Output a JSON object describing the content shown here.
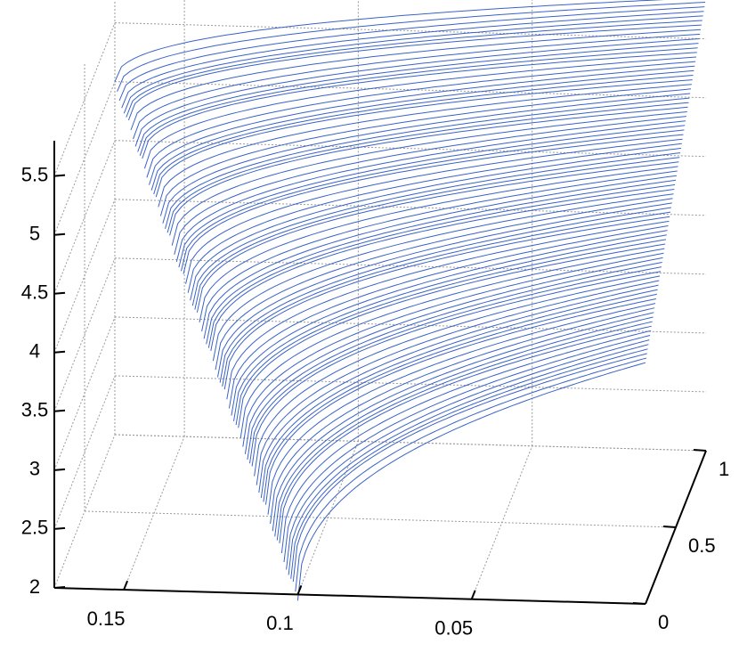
{
  "chart_data": {
    "type": "surface",
    "title": "",
    "xlabel": "",
    "ylabel": "",
    "zlabel": "",
    "x_axis": {
      "range": [
        0,
        0.17
      ],
      "ticks": [
        0.15,
        0.1,
        0.05
      ],
      "tick_labels": [
        "0.15",
        "0.1",
        "0.05"
      ]
    },
    "y_axis": {
      "range": [
        0,
        1
      ],
      "ticks": [
        0,
        0.5,
        1
      ],
      "tick_labels": [
        "0",
        "0.5",
        "1"
      ]
    },
    "z_axis": {
      "range": [
        2,
        5.8
      ],
      "ticks": [
        2,
        2.5,
        3,
        3.5,
        4,
        4.5,
        5,
        5.5
      ],
      "tick_labels": [
        "2",
        "2.5",
        "3",
        "3.5",
        "4",
        "4.5",
        "5",
        "5.5"
      ]
    },
    "grid": true,
    "line_color": "#3a63c8",
    "surface": {
      "x_start": [
        0.17,
        0.1
      ],
      "x_end": 0,
      "z_at_x_start": [
        5.0,
        2.0
      ],
      "z_at_x_end": [
        5.85,
        4.05
      ]
    }
  }
}
